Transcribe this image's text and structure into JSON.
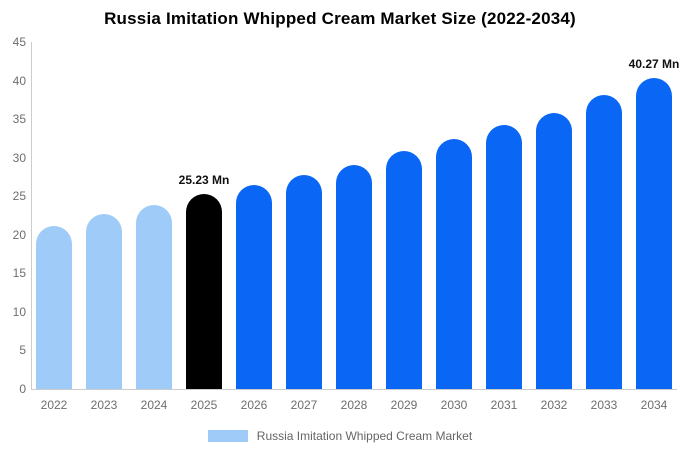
{
  "chart_data": {
    "type": "bar",
    "title": "Russia Imitation Whipped Cream Market Size (2022-2034)",
    "unit": "Mn",
    "categories": [
      "2022",
      "2023",
      "2024",
      "2025",
      "2026",
      "2027",
      "2028",
      "2029",
      "2030",
      "2031",
      "2032",
      "2033",
      "2034"
    ],
    "values": [
      21.2,
      22.7,
      23.9,
      25.23,
      26.5,
      27.7,
      29.1,
      30.9,
      32.4,
      34.2,
      35.8,
      38.1,
      40.27
    ],
    "xlabel": "",
    "ylabel": "",
    "ylim": [
      0,
      45
    ],
    "yticks": [
      0,
      5,
      10,
      15,
      20,
      25,
      30,
      35,
      40,
      45
    ],
    "grid": false,
    "bar_colors": [
      "#9FCBF8",
      "#9FCBF8",
      "#9FCBF8",
      "#000000",
      "#0A66F5",
      "#0A66F5",
      "#0A66F5",
      "#0A66F5",
      "#0A66F5",
      "#0A66F5",
      "#0A66F5",
      "#0A66F5",
      "#0A66F5"
    ],
    "color_roles": {
      "historical": "#9FCBF8",
      "base_year": "#000000",
      "forecast": "#0A66F5"
    },
    "data_labels": [
      {
        "index": 3,
        "text": "25.23 Mn"
      },
      {
        "index": 12,
        "text": "40.27 Mn"
      }
    ],
    "legend": {
      "position": "bottom",
      "items": [
        {
          "label": "Russia Imitation Whipped Cream Market",
          "color": "#9FCBF8"
        }
      ]
    },
    "axis_color": "#CCCCCC",
    "tick_label_color": "#6E6E6E",
    "background": "#FFFFFF"
  }
}
